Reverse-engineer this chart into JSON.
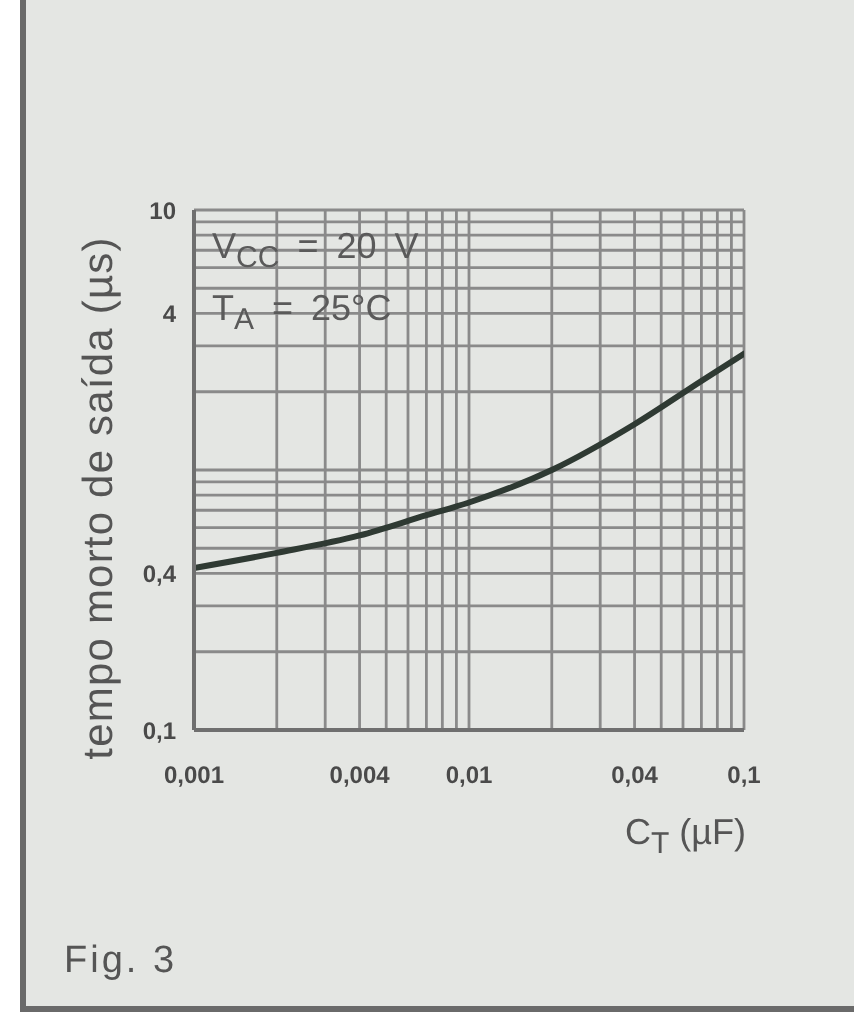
{
  "chart_data": {
    "type": "line",
    "xlabel": "C$_{T}$ (µF)",
    "ylabel": "tempo morto de saída (µs)",
    "annotations": [
      "V$_{CC}$ = 20 V",
      "T$_{A}$ = 25°C",
      "Fig. 3"
    ],
    "x": [
      0.001,
      0.002,
      0.004,
      0.007,
      0.01,
      0.02,
      0.04,
      0.07,
      0.1
    ],
    "series": [
      {
        "color": "#2f3a33",
        "values": [
          0.42,
          0.48,
          0.56,
          0.67,
          0.75,
          1.0,
          1.5,
          2.2,
          2.8
        ]
      }
    ],
    "xlim": [
      0.001,
      0.1
    ],
    "ylim": [
      0.1,
      10
    ],
    "xticks": [
      {
        "value": 0.001,
        "label": "0,001"
      },
      {
        "value": 0.002,
        "label": null
      },
      {
        "value": 0.003,
        "label": null
      },
      {
        "value": 0.004,
        "label": "0,004"
      },
      {
        "value": 0.005,
        "label": null
      },
      {
        "value": 0.006,
        "label": null
      },
      {
        "value": 0.007,
        "label": null
      },
      {
        "value": 0.008,
        "label": null
      },
      {
        "value": 0.009,
        "label": null
      },
      {
        "value": 0.01,
        "label": "0,01"
      },
      {
        "value": 0.02,
        "label": null
      },
      {
        "value": 0.03,
        "label": null
      },
      {
        "value": 0.04,
        "label": "0,04"
      },
      {
        "value": 0.05,
        "label": null
      },
      {
        "value": 0.06,
        "label": null
      },
      {
        "value": 0.07,
        "label": null
      },
      {
        "value": 0.08,
        "label": null
      },
      {
        "value": 0.09,
        "label": null
      },
      {
        "value": 0.1,
        "label": "0,1"
      }
    ],
    "yticks": [
      {
        "value": 0.1,
        "label": "0,1"
      },
      {
        "value": 0.2,
        "label": null
      },
      {
        "value": 0.3,
        "label": null
      },
      {
        "value": 0.4,
        "label": "0,4"
      },
      {
        "value": 0.5,
        "label": null
      },
      {
        "value": 0.6,
        "label": null
      },
      {
        "value": 0.7,
        "label": null
      },
      {
        "value": 0.8,
        "label": null
      },
      {
        "value": 0.9,
        "label": null
      },
      {
        "value": 1,
        "label": null
      },
      {
        "value": 2,
        "label": null
      },
      {
        "value": 3,
        "label": null
      },
      4,
      {
        "value": 5,
        "label": null
      },
      {
        "value": 6,
        "label": null
      },
      {
        "value": 7,
        "label": null
      },
      {
        "value": 8,
        "label": null
      },
      {
        "value": 9,
        "label": null
      },
      10
    ],
    "log": "xy",
    "grid": true,
    "line_style": "solid"
  }
}
